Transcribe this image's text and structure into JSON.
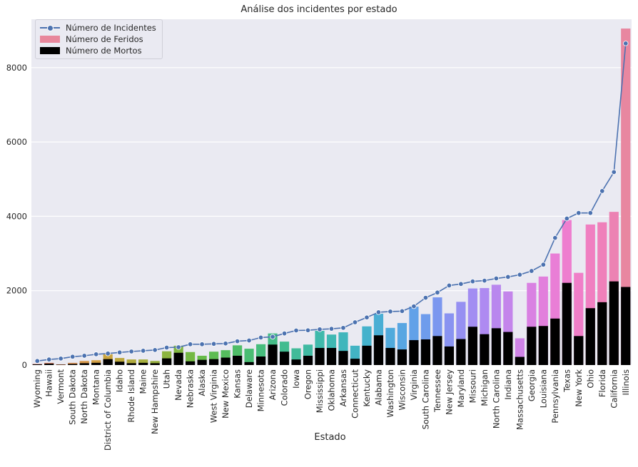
{
  "chart_data": {
    "type": "bar",
    "title": "Análise dos incidentes por estado",
    "xlabel": "Estado",
    "ylabel": "",
    "ylim": [
      0,
      9300
    ],
    "yticks": [
      0,
      2000,
      4000,
      6000,
      8000
    ],
    "grid": true,
    "legend_position": "top-left",
    "colors": {
      "incidentes": "#4c72b0",
      "mortos": "#000000",
      "background": "#eaeaf2"
    },
    "categories": [
      "Wyoming",
      "Hawaii",
      "Vermont",
      "South Dakota",
      "North Dakota",
      "Montana",
      "District of Columbia",
      "Idaho",
      "Rhode Island",
      "Maine",
      "New Hampshire",
      "Utah",
      "Nevada",
      "Nebraska",
      "Alaska",
      "West Virginia",
      "New Mexico",
      "Kansas",
      "Delaware",
      "Minnesota",
      "Arizona",
      "Colorado",
      "Iowa",
      "Oregon",
      "Mississippi",
      "Oklahoma",
      "Arkansas",
      "Connecticut",
      "Kentucky",
      "Alabama",
      "Washington",
      "Wisconsin",
      "Virginia",
      "South Carolina",
      "Tennessee",
      "New Jersey",
      "Maryland",
      "Missouri",
      "Michigan",
      "North Carolina",
      "Indiana",
      "Massachusetts",
      "Georgia",
      "Louisiana",
      "Pennsylvania",
      "Texas",
      "New York",
      "Ohio",
      "Florida",
      "California",
      "Illinois"
    ],
    "bar_colors": [
      "#e8877a",
      "#e88a70",
      "#e48f65",
      "#df9556",
      "#d99a4c",
      "#d29f44",
      "#c9a43f",
      "#bda83d",
      "#b1ab3d",
      "#a5ae3d",
      "#99b13f",
      "#8cb43f",
      "#80b641",
      "#74b944",
      "#67bb4a",
      "#5ebc53",
      "#55bd5e",
      "#4fbd68",
      "#4abd73",
      "#46bd7d",
      "#44bc87",
      "#42bc90",
      "#41bb99",
      "#40baa2",
      "#3fb9ab",
      "#3fb8b3",
      "#40b6bc",
      "#42b4c4",
      "#45b2cc",
      "#4aaed4",
      "#50aadc",
      "#58a6e2",
      "#62a1e8",
      "#6e9cec",
      "#7b97ef",
      "#8993f1",
      "#9690f2",
      "#a28df2",
      "#ae8af1",
      "#b987ee",
      "#c485eb",
      "#cf83e7",
      "#d981e2",
      "#e27fdc",
      "#e97ed6",
      "#ee7ecf",
      "#f07ec8",
      "#f07fc1",
      "#ef80ba",
      "#ec82b3",
      "#e887a0"
    ],
    "series": [
      {
        "name": "Número de Incidentes",
        "type": "line",
        "values": [
          110,
          150,
          175,
          225,
          250,
          290,
          310,
          340,
          365,
          385,
          405,
          470,
          480,
          560,
          560,
          570,
          580,
          640,
          660,
          740,
          760,
          850,
          930,
          935,
          960,
          975,
          1000,
          1150,
          1280,
          1420,
          1440,
          1450,
          1580,
          1810,
          1950,
          2140,
          2180,
          2250,
          2270,
          2330,
          2370,
          2430,
          2530,
          2700,
          3420,
          3940,
          4090,
          4090,
          4680,
          5190,
          8650
        ]
      },
      {
        "name": "Número de Feridos",
        "type": "bar",
        "values": [
          30,
          60,
          20,
          60,
          110,
          130,
          290,
          190,
          150,
          150,
          110,
          370,
          520,
          350,
          250,
          360,
          400,
          530,
          440,
          560,
          850,
          630,
          450,
          550,
          920,
          820,
          880,
          520,
          1040,
          1380,
          1000,
          1130,
          1570,
          1370,
          1820,
          1390,
          1700,
          2060,
          2070,
          2160,
          1980,
          720,
          2210,
          2380,
          3000,
          3900,
          2480,
          3780,
          3840,
          4120,
          9050
        ]
      },
      {
        "name": "Número de Mortos",
        "type": "bar",
        "values": [
          20,
          40,
          10,
          30,
          50,
          60,
          160,
          90,
          50,
          60,
          50,
          180,
          330,
          100,
          140,
          160,
          200,
          250,
          80,
          230,
          550,
          360,
          150,
          250,
          460,
          460,
          380,
          170,
          520,
          800,
          460,
          420,
          670,
          690,
          780,
          500,
          700,
          1030,
          830,
          990,
          890,
          220,
          1030,
          1050,
          1250,
          2210,
          780,
          1530,
          1690,
          2250,
          2100
        ]
      }
    ]
  }
}
